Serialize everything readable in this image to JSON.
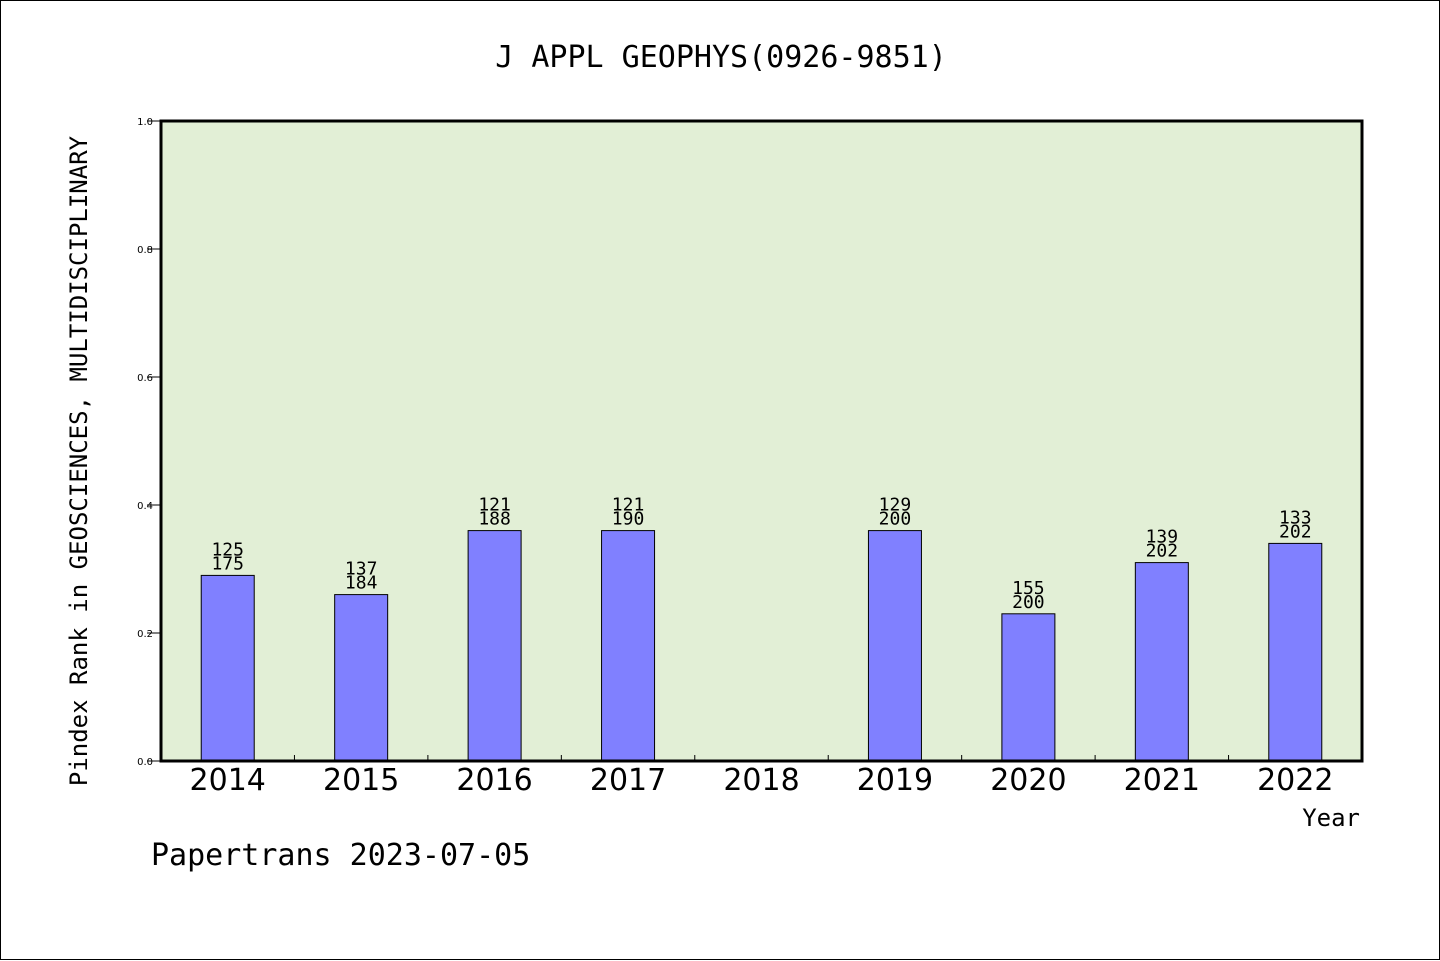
{
  "colors": {
    "plot_background": "#e2efd6",
    "bar_fill": "#8080ff",
    "bar_stroke": "#000000",
    "axis": "#000000"
  },
  "chart_data": {
    "type": "bar",
    "title": "J APPL GEOPHYS(0926-9851)",
    "xlabel": "Year",
    "ylabel": "Pindex Rank in GEOSCIENCES, MULTIDISCIPLINARY",
    "ylim": [
      0,
      1.0
    ],
    "yticks": [
      "0.0",
      "0.2",
      "0.4",
      "0.6",
      "0.8",
      "1.0"
    ],
    "grid": false,
    "categories": [
      "2014",
      "2015",
      "2016",
      "2017",
      "2018",
      "2019",
      "2020",
      "2021",
      "2022"
    ],
    "values": [
      0.29,
      0.26,
      0.36,
      0.36,
      null,
      0.36,
      0.23,
      0.31,
      0.34
    ],
    "rank_labels": [
      "125",
      "137",
      "121",
      "121",
      "",
      "129",
      "155",
      "139",
      "133"
    ],
    "total_labels": [
      "175",
      "184",
      "188",
      "190",
      "",
      "200",
      "200",
      "202",
      "202"
    ]
  },
  "footer": "Papertrans 2023-07-05"
}
